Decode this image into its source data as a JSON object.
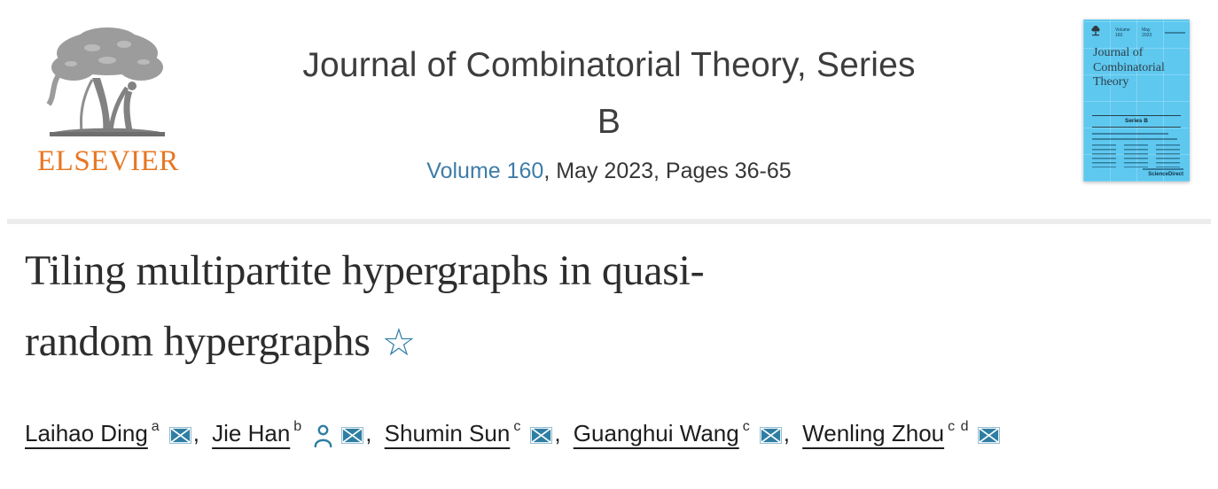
{
  "header": {
    "publisher": "ELSEVIER",
    "journal_title_line1": "Journal of Combinatorial Theory, Series",
    "journal_title_line2": "B",
    "volume_link": "Volume 160",
    "issue_info": ", May 2023, Pages 36-65"
  },
  "cover": {
    "top_left": "Volume 160",
    "top_mid": "May 2023",
    "title": "Journal of Combinatorial Theory",
    "series": "Series B",
    "brand": "ScienceDirect"
  },
  "article": {
    "full_title": "Tiling multipartite hypergraphs in quasi-random hypergraphs",
    "title_line1": "Tiling multipartite hypergraphs in quasi-",
    "title_line2": "random hypergraphs",
    "star_symbol": "☆"
  },
  "authors": {
    "separator": ", ",
    "list": [
      {
        "name": "Laihao Ding",
        "affiliation_sup": "a",
        "icons": [
          "email"
        ]
      },
      {
        "name": "Jie Han",
        "affiliation_sup": "b",
        "icons": [
          "profile",
          "email"
        ]
      },
      {
        "name": "Shumin Sun",
        "affiliation_sup": "c",
        "icons": [
          "email"
        ]
      },
      {
        "name": "Guanghui Wang",
        "affiliation_sup": "c",
        "icons": [
          "email"
        ]
      },
      {
        "name": "Wenling Zhou",
        "affiliation_sup": "c d",
        "icons": [
          "email"
        ]
      }
    ]
  },
  "colors": {
    "accent_orange": "#E87722",
    "link_blue": "#3E7CA8",
    "icon_teal": "#2E7EA3",
    "cover_blue": "#5EC8EF"
  }
}
